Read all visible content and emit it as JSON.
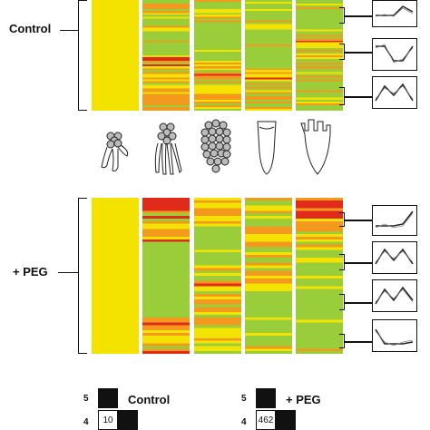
{
  "figure": {
    "control_label": "Control",
    "peg_label": "+ PEG",
    "colors": {
      "yellow": "#f4e300",
      "green": "#9acd3a",
      "orange": "#f39a1e",
      "red": "#e02a1a"
    },
    "heatmap_icons": [
      "mature-zone-sketch",
      "maturation-sketch",
      "elongation-sketch",
      "meristem-sketch",
      "root-tip-sketch"
    ],
    "legends": [
      {
        "title": "Control",
        "row_labels": [
          "5",
          "4"
        ],
        "cell_value": "10"
      },
      {
        "title": "+ PEG",
        "row_labels": [
          "5",
          "4"
        ],
        "cell_value": "462"
      }
    ]
  }
}
